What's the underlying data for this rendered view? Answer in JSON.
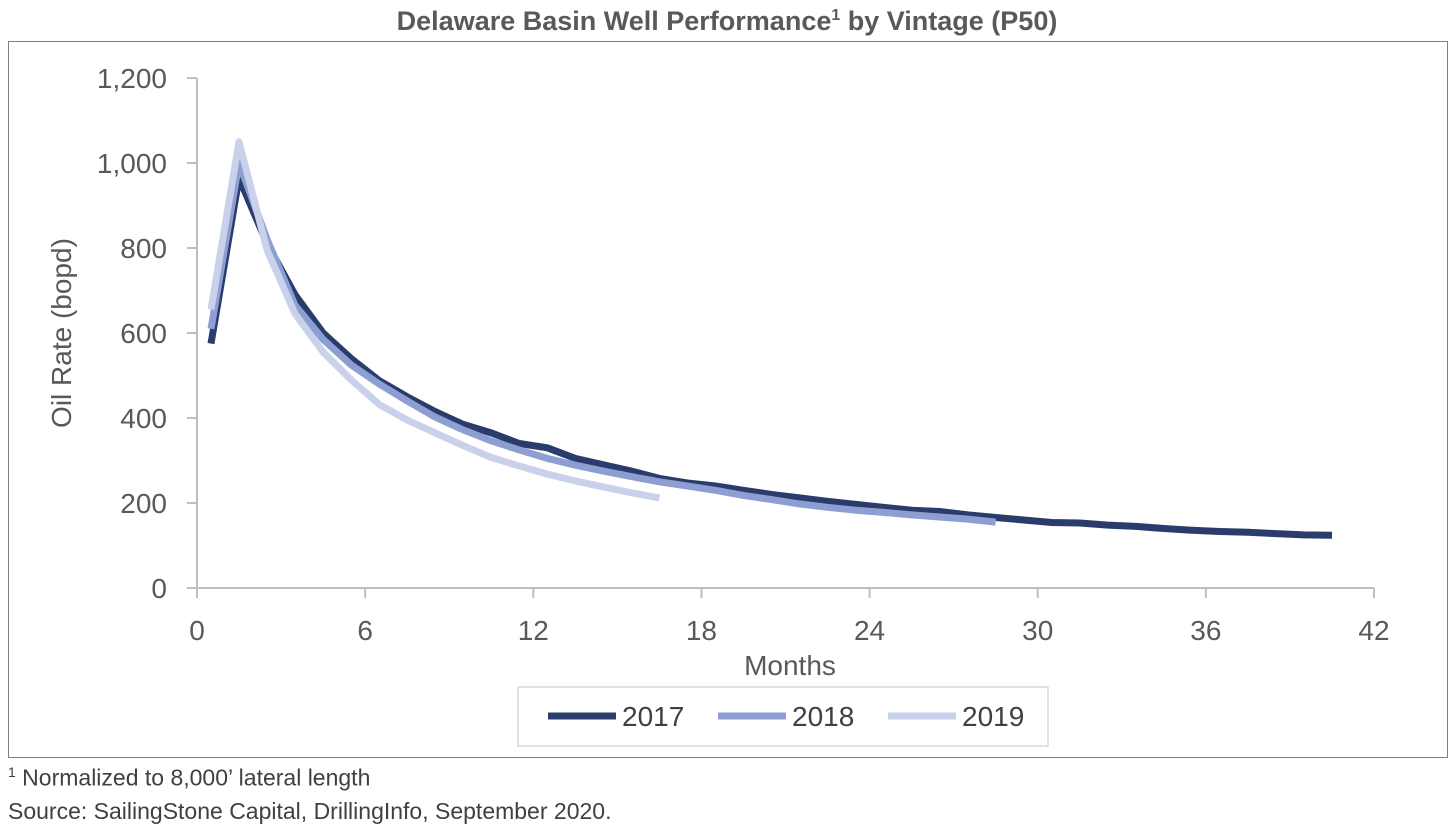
{
  "chart_data": {
    "type": "line",
    "title": "Delaware Basin Well Performance",
    "title_superscript": "1",
    "title_suffix": " by Vintage (P50)",
    "xlabel": "Months",
    "ylabel": "Oil Rate (bopd)",
    "xlim": [
      0,
      42
    ],
    "ylim": [
      0,
      1200
    ],
    "x_ticks": [
      0,
      6,
      12,
      18,
      24,
      30,
      36,
      42
    ],
    "x_tick_labels": [
      "0",
      "6",
      "12",
      "18",
      "24",
      "30",
      "36",
      "42"
    ],
    "y_ticks": [
      0,
      200,
      400,
      600,
      800,
      1000,
      1200
    ],
    "y_tick_labels": [
      "0",
      "200",
      "400",
      "600",
      "800",
      "1,000",
      "1,200"
    ],
    "gridlines": false,
    "legend_position": "bottom",
    "series": [
      {
        "name": "2017",
        "color": "#2a3c6b",
        "x": [
          0.5,
          1.5,
          2.5,
          3.5,
          4.5,
          5.5,
          6.5,
          7.5,
          8.5,
          9.5,
          10.5,
          11.5,
          12.5,
          13.5,
          14.5,
          15.5,
          16.5,
          17.5,
          18.5,
          19.5,
          20.5,
          21.5,
          22.5,
          23.5,
          24.5,
          25.5,
          26.5,
          27.5,
          28.5,
          29.5,
          30.5,
          31.5,
          32.5,
          33.5,
          34.5,
          35.5,
          36.5,
          37.5,
          38.5,
          39.5,
          40.5
        ],
        "values": [
          575,
          965,
          810,
          690,
          600,
          540,
          488,
          450,
          415,
          385,
          365,
          340,
          330,
          305,
          290,
          275,
          258,
          247,
          240,
          230,
          220,
          212,
          204,
          197,
          190,
          183,
          180,
          172,
          166,
          160,
          154,
          153,
          148,
          145,
          140,
          136,
          133,
          131,
          128,
          125,
          124
        ]
      },
      {
        "name": "2018",
        "color": "#8d9ed3",
        "x": [
          0.5,
          1.5,
          2.5,
          3.5,
          4.5,
          5.5,
          6.5,
          7.5,
          8.5,
          9.5,
          10.5,
          11.5,
          12.5,
          13.5,
          14.5,
          15.5,
          16.5,
          17.5,
          18.5,
          19.5,
          20.5,
          21.5,
          22.5,
          23.5,
          24.5,
          25.5,
          26.5,
          27.5,
          28.5
        ],
        "values": [
          610,
          1000,
          820,
          665,
          585,
          525,
          480,
          440,
          402,
          372,
          346,
          325,
          305,
          289,
          275,
          262,
          250,
          240,
          230,
          218,
          208,
          198,
          190,
          183,
          178,
          172,
          167,
          162,
          155
        ]
      },
      {
        "name": "2019",
        "color": "#c9d2ea",
        "x": [
          0.5,
          1.5,
          2.5,
          3.5,
          4.5,
          5.5,
          6.5,
          7.5,
          8.5,
          9.5,
          10.5,
          11.5,
          12.5,
          13.5,
          14.5,
          15.5,
          16.5
        ],
        "values": [
          655,
          1050,
          795,
          645,
          555,
          490,
          432,
          395,
          365,
          335,
          307,
          287,
          268,
          252,
          238,
          224,
          212
        ]
      }
    ]
  },
  "footnote": {
    "marker": "1",
    "text": " Normalized to 8,000’ lateral length"
  },
  "source": "Source: SailingStone Capital, DrillingInfo, September 2020."
}
